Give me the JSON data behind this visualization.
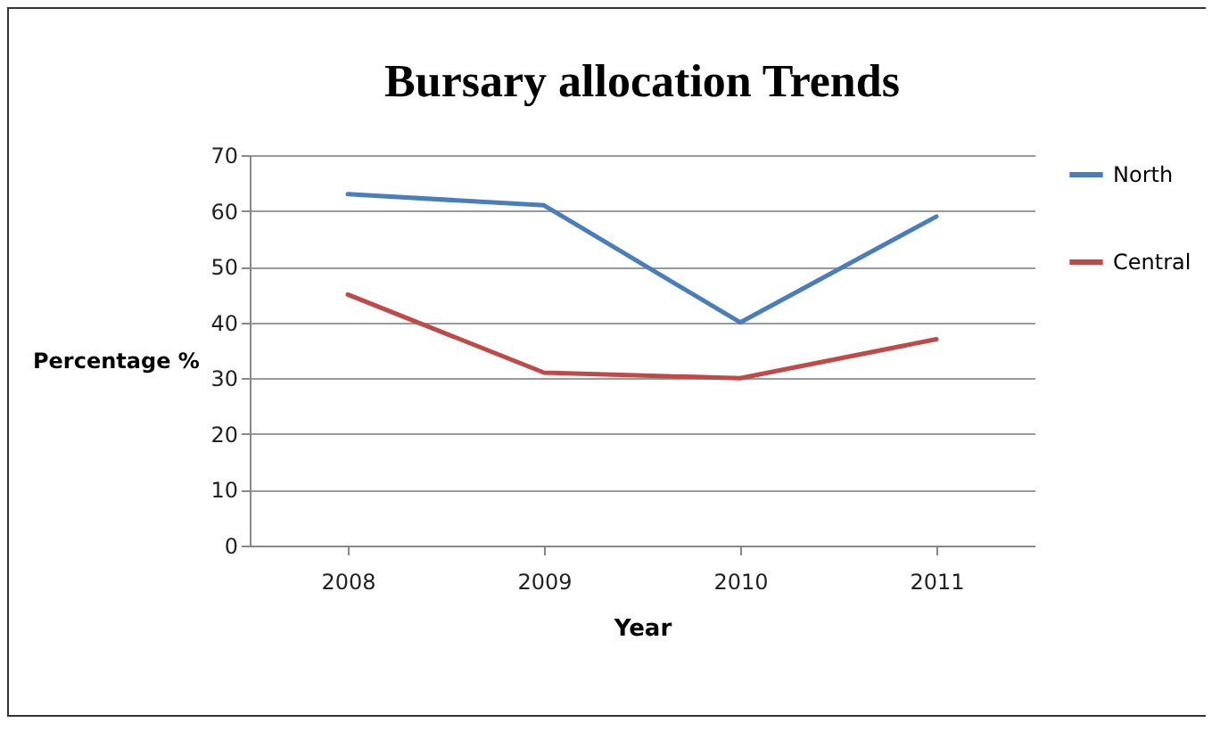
{
  "chart_data": {
    "type": "line",
    "title": "Bursary allocation Trends",
    "xlabel": "Year",
    "ylabel": "Percentage %",
    "categories": [
      "2008",
      "2009",
      "2010",
      "2011"
    ],
    "series": [
      {
        "name": "North",
        "color": "#4a7ebb",
        "values": [
          63,
          61,
          40,
          59
        ]
      },
      {
        "name": "Central",
        "color": "#be4b48",
        "values": [
          45,
          31,
          30,
          37
        ]
      }
    ],
    "ylim": [
      0,
      70
    ],
    "yticks": [
      0,
      10,
      20,
      30,
      40,
      50,
      60,
      70
    ],
    "grid": "y",
    "legend": "right",
    "marker": "none",
    "line_style": "solid"
  }
}
